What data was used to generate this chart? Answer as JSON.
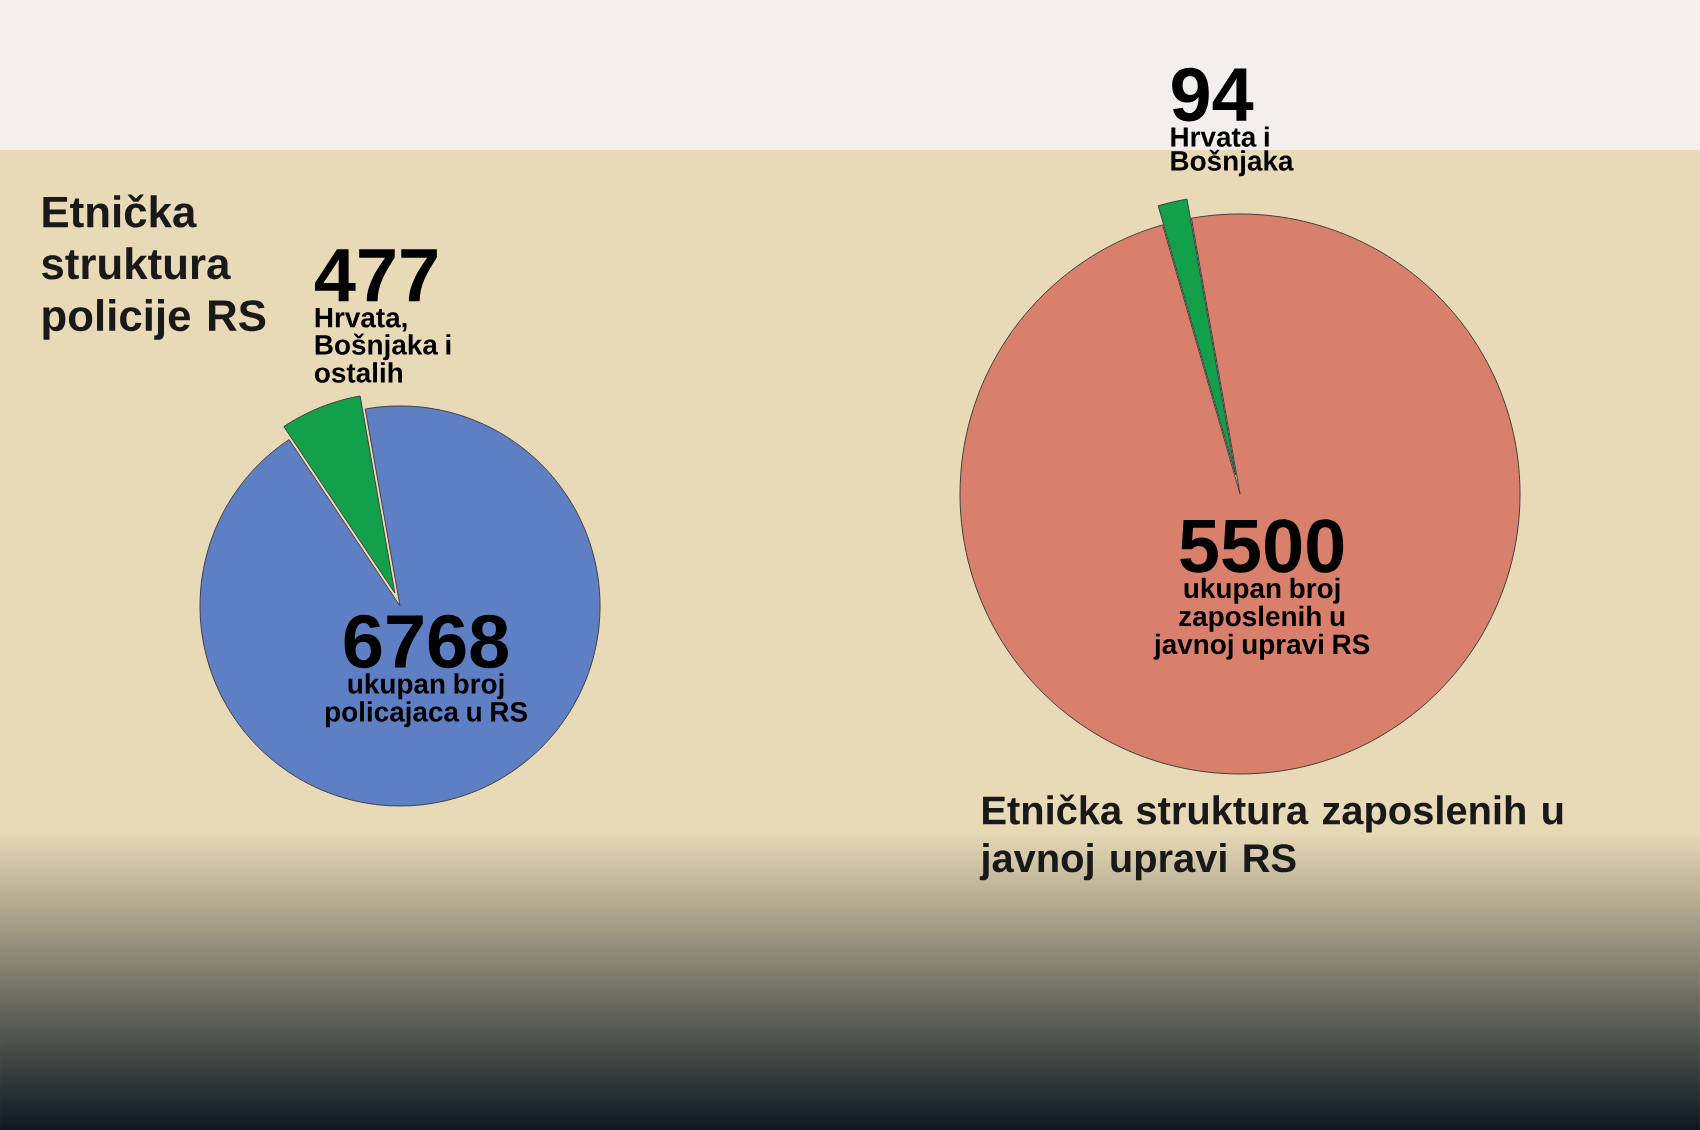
{
  "chart_data": [
    {
      "type": "pie",
      "title": "Etnička struktura policije RS",
      "categories": [
        "ukupan broj policajaca u RS",
        "Hrvata, Bošnjaka i ostalih"
      ],
      "values": [
        6768,
        477
      ],
      "colors": [
        "#5f7fc4",
        "#12a04a"
      ],
      "data_labels": true
    },
    {
      "type": "pie",
      "title": "Etnička struktura zaposlenih u javnoj upravi RS",
      "categories": [
        "ukupan broj zaposlenih u javnoj upravi RS",
        "Hrvata i Bošnjaka"
      ],
      "values": [
        5500,
        94
      ],
      "colors": [
        "#d9806c",
        "#12a04a"
      ],
      "data_labels": true
    }
  ]
}
